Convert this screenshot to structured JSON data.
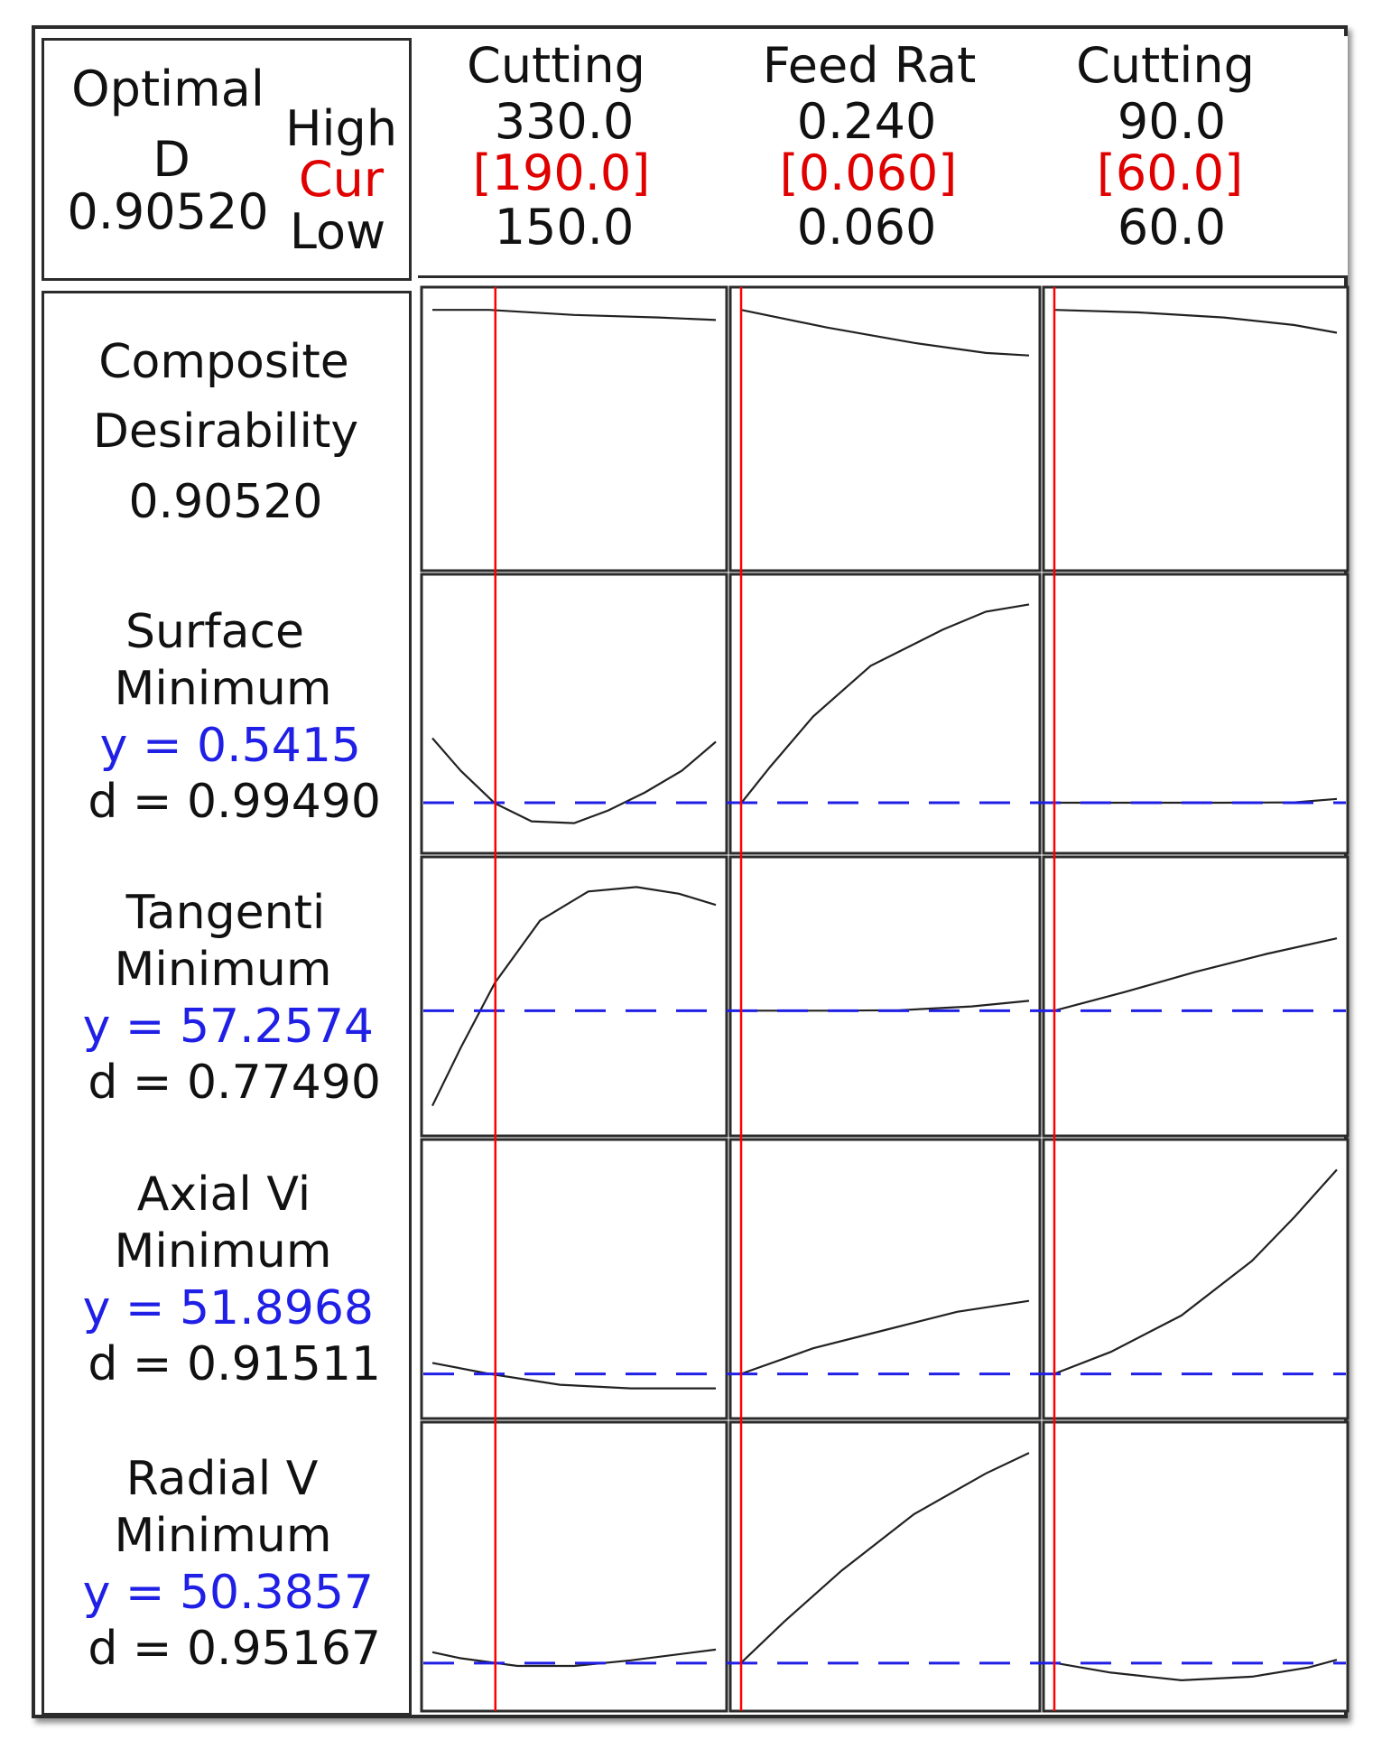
{
  "optimal": {
    "title": "Optimal",
    "d_label": "D",
    "d_value": "0.90520",
    "high_label": "High",
    "cur_label": "Cur",
    "low_label": "Low"
  },
  "colors": {
    "current_line": "#ff0000",
    "target_line": "#1f1fe6",
    "curve": "#222222",
    "cur_text": "#e00000",
    "y_text": "#1f1fe6"
  },
  "chart_data": {
    "type": "line",
    "title": "",
    "factors": [
      {
        "name": "Cutting",
        "high": "330.0",
        "cur": "[190.0]",
        "low": "150.0",
        "high_value": 330.0,
        "low_value": 150.0,
        "cur_value": 190.0
      },
      {
        "name": "Feed Rat",
        "high": "0.240",
        "cur": "[0.060]",
        "low": "0.060",
        "high_value": 0.24,
        "low_value": 0.06,
        "cur_value": 0.06
      },
      {
        "name": "Cutting",
        "high": "90.0",
        "cur": "[60.0]",
        "low": "60.0",
        "high_value": 90.0,
        "low_value": 60.0,
        "cur_value": 60.0
      }
    ],
    "responses": [
      {
        "name": "Composite",
        "line2": "Desirability",
        "line3": "0.90520",
        "line4": "",
        "curves": [
          [
            [
              0.0,
              0.98
            ],
            [
              0.2,
              0.98
            ],
            [
              0.5,
              0.96
            ],
            [
              0.8,
              0.95
            ],
            [
              1.0,
              0.94
            ]
          ],
          [
            [
              0.0,
              0.98
            ],
            [
              0.3,
              0.91
            ],
            [
              0.6,
              0.85
            ],
            [
              0.85,
              0.81
            ],
            [
              1.0,
              0.8
            ]
          ],
          [
            [
              0.0,
              0.98
            ],
            [
              0.3,
              0.97
            ],
            [
              0.6,
              0.95
            ],
            [
              0.85,
              0.92
            ],
            [
              1.0,
              0.89
            ]
          ]
        ]
      },
      {
        "name": "Surface",
        "line2": "Minimum",
        "line3": "y = 0.5415",
        "line4": "d = 0.99490",
        "target": 0.5415,
        "curves": [
          [
            [
              0.0,
              0.72
            ],
            [
              0.1,
              0.63
            ],
            [
              0.22,
              0.54
            ],
            [
              0.35,
              0.49
            ],
            [
              0.5,
              0.485
            ],
            [
              0.62,
              0.52
            ],
            [
              0.75,
              0.57
            ],
            [
              0.88,
              0.63
            ],
            [
              1.0,
              0.71
            ]
          ],
          [
            [
              0.0,
              0.54
            ],
            [
              0.1,
              0.64
            ],
            [
              0.25,
              0.78
            ],
            [
              0.45,
              0.92
            ],
            [
              0.7,
              1.02
            ],
            [
              0.85,
              1.07
            ],
            [
              1.0,
              1.09
            ]
          ],
          [
            [
              0.0,
              0.5415
            ],
            [
              0.3,
              0.5415
            ],
            [
              0.6,
              0.5415
            ],
            [
              0.85,
              0.5425
            ],
            [
              1.0,
              0.552
            ]
          ]
        ]
      },
      {
        "name": "Tangenti",
        "line2": "Minimum",
        "line3": "y = 57.2574",
        "line4": "d = 0.77490",
        "target": 57.2574,
        "curves": [
          [
            [
              0.0,
              53.0
            ],
            [
              0.1,
              55.6
            ],
            [
              0.22,
              58.5
            ],
            [
              0.38,
              61.3
            ],
            [
              0.55,
              62.6
            ],
            [
              0.72,
              62.8
            ],
            [
              0.87,
              62.5
            ],
            [
              1.0,
              62.0
            ]
          ],
          [
            [
              0.0,
              57.26
            ],
            [
              0.3,
              57.26
            ],
            [
              0.55,
              57.28
            ],
            [
              0.8,
              57.45
            ],
            [
              1.0,
              57.7
            ]
          ],
          [
            [
              0.0,
              57.26
            ],
            [
              0.25,
              58.1
            ],
            [
              0.5,
              59.0
            ],
            [
              0.75,
              59.8
            ],
            [
              1.0,
              60.5
            ]
          ]
        ]
      },
      {
        "name": "Axial Vi",
        "line2": "Minimum",
        "line3": "y = 51.8968",
        "line4": "d = 0.91511",
        "target": 51.8968,
        "curves": [
          [
            [
              0.0,
              52.2
            ],
            [
              0.2,
              51.9
            ],
            [
              0.45,
              51.6
            ],
            [
              0.7,
              51.5
            ],
            [
              1.0,
              51.5
            ]
          ],
          [
            [
              0.0,
              51.9
            ],
            [
              0.25,
              52.6
            ],
            [
              0.5,
              53.1
            ],
            [
              0.75,
              53.6
            ],
            [
              1.0,
              53.9
            ]
          ],
          [
            [
              0.0,
              51.9
            ],
            [
              0.2,
              52.5
            ],
            [
              0.45,
              53.5
            ],
            [
              0.7,
              55.0
            ],
            [
              0.85,
              56.2
            ],
            [
              1.0,
              57.5
            ]
          ]
        ]
      },
      {
        "name": "Radial V",
        "line2": "Minimum",
        "line3": "y = 50.3857",
        "line4": "d = 0.95167",
        "target": 50.3857,
        "curves": [
          [
            [
              0.0,
              50.6
            ],
            [
              0.1,
              50.48
            ],
            [
              0.3,
              50.33
            ],
            [
              0.5,
              50.33
            ],
            [
              0.7,
              50.44
            ],
            [
              1.0,
              50.65
            ]
          ],
          [
            [
              0.0,
              50.39
            ],
            [
              0.15,
              51.2
            ],
            [
              0.35,
              52.2
            ],
            [
              0.6,
              53.3
            ],
            [
              0.85,
              54.1
            ],
            [
              1.0,
              54.5
            ]
          ],
          [
            [
              0.0,
              50.39
            ],
            [
              0.2,
              50.2
            ],
            [
              0.45,
              50.05
            ],
            [
              0.7,
              50.12
            ],
            [
              0.9,
              50.3
            ],
            [
              1.0,
              50.45
            ]
          ]
        ]
      }
    ]
  }
}
